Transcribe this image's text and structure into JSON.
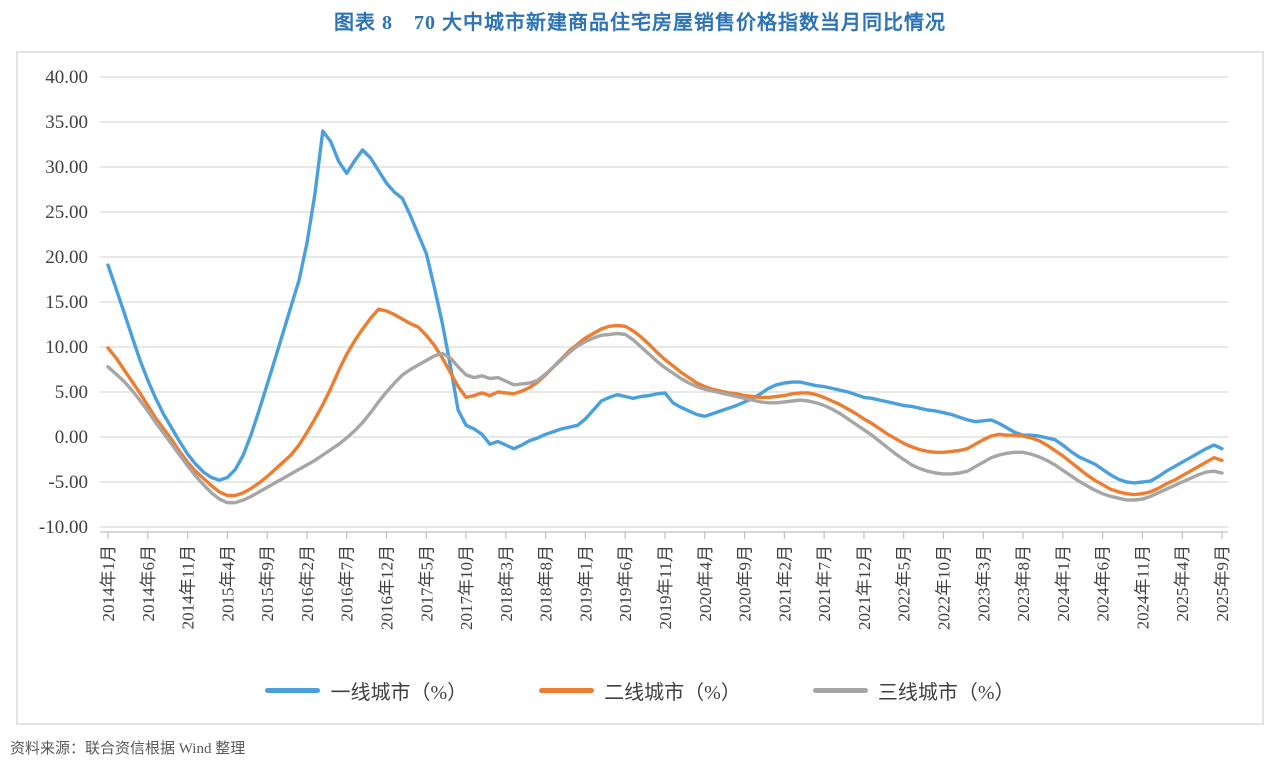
{
  "title": "图表 8　70 大中城市新建商品住宅房屋销售价格指数当月同比情况",
  "source_note": "资料来源：联合资信根据 Wind 整理",
  "chart_data": {
    "type": "line",
    "grid": true,
    "legend_position": "bottom",
    "ylim": [
      -10,
      40
    ],
    "y_ticks": [
      40,
      35,
      30,
      25,
      20,
      15,
      10,
      5,
      0,
      -5,
      -10
    ],
    "y_tick_decimals": 2,
    "x_start_label": "2014年1月",
    "x_tick_every_n_months": 5,
    "x_tick_labels": [
      "2014年1月",
      "2014年6月",
      "2014年11月",
      "2015年4月",
      "2015年9月",
      "2016年2月",
      "2016年7月",
      "2016年12月",
      "2017年5月",
      "2017年10月",
      "2018年3月",
      "2018年8月",
      "2019年1月",
      "2019年6月",
      "2019年11月",
      "2020年4月",
      "2020年9月",
      "2021年2月",
      "2021年7月",
      "2021年12月",
      "2022年5月",
      "2022年10月",
      "2023年3月",
      "2023年8月",
      "2024年1月",
      "2024年6月",
      "2024年11月",
      "2025年4月",
      "2025年9月"
    ],
    "colors": {
      "grid": "#D9D9D9",
      "axis": "#BFBFBF",
      "tick_text": "#404040",
      "title": "#2E74B5"
    },
    "series": [
      {
        "name": "一线城市（%）",
        "color": "#4AA0DC",
        "values": [
          19.1,
          16.5,
          13.9,
          11.2,
          8.6,
          6.3,
          4.3,
          2.5,
          1.0,
          -0.5,
          -1.9,
          -3.0,
          -3.9,
          -4.5,
          -4.8,
          -4.5,
          -3.6,
          -2.0,
          0.3,
          3.0,
          5.8,
          8.7,
          11.6,
          14.5,
          17.4,
          21.5,
          27.0,
          34.0,
          32.8,
          30.6,
          29.3,
          30.7,
          31.9,
          31.0,
          29.6,
          28.2,
          27.2,
          26.5,
          24.6,
          22.5,
          20.4,
          16.7,
          12.7,
          8.0,
          3.0,
          1.3,
          0.9,
          0.3,
          -0.8,
          -0.5,
          -0.9,
          -1.3,
          -0.9,
          -0.4,
          -0.1,
          0.3,
          0.6,
          0.9,
          1.1,
          1.3,
          2.0,
          3.0,
          4.0,
          4.4,
          4.7,
          4.5,
          4.3,
          4.5,
          4.6,
          4.8,
          4.9,
          3.8,
          3.3,
          2.9,
          2.5,
          2.3,
          2.6,
          2.9,
          3.2,
          3.5,
          3.9,
          4.3,
          4.8,
          5.4,
          5.8,
          6.0,
          6.1,
          6.1,
          5.9,
          5.7,
          5.6,
          5.4,
          5.2,
          5.0,
          4.7,
          4.4,
          4.3,
          4.1,
          3.9,
          3.7,
          3.5,
          3.4,
          3.2,
          3.0,
          2.9,
          2.7,
          2.5,
          2.2,
          1.9,
          1.7,
          1.8,
          1.9,
          1.5,
          1.0,
          0.5,
          0.2,
          0.2,
          0.1,
          -0.1,
          -0.3,
          -0.9,
          -1.6,
          -2.2,
          -2.6,
          -3.0,
          -3.6,
          -4.2,
          -4.7,
          -5.0,
          -5.1,
          -5.0,
          -4.9,
          -4.4,
          -3.8,
          -3.3,
          -2.8,
          -2.3,
          -1.8,
          -1.3,
          -0.9,
          -1.3
        ]
      },
      {
        "name": "二线城市（%）",
        "color": "#ED7D31",
        "values": [
          9.9,
          8.8,
          7.5,
          6.2,
          4.9,
          3.5,
          2.1,
          0.9,
          -0.3,
          -1.6,
          -2.8,
          -3.8,
          -4.6,
          -5.4,
          -6.1,
          -6.5,
          -6.5,
          -6.2,
          -5.7,
          -5.1,
          -4.4,
          -3.6,
          -2.8,
          -2.0,
          -0.9,
          0.5,
          2.0,
          3.6,
          5.4,
          7.4,
          9.2,
          10.7,
          12.0,
          13.2,
          14.2,
          14.0,
          13.6,
          13.1,
          12.6,
          12.2,
          11.3,
          10.2,
          8.8,
          7.2,
          5.6,
          4.4,
          4.6,
          4.9,
          4.6,
          5.0,
          4.9,
          4.8,
          5.1,
          5.5,
          6.1,
          6.9,
          7.8,
          8.7,
          9.6,
          10.3,
          11.0,
          11.5,
          12.0,
          12.3,
          12.4,
          12.3,
          11.8,
          11.1,
          10.3,
          9.4,
          8.6,
          7.9,
          7.2,
          6.6,
          6.0,
          5.6,
          5.3,
          5.1,
          4.9,
          4.8,
          4.6,
          4.5,
          4.4,
          4.4,
          4.5,
          4.6,
          4.8,
          4.9,
          4.9,
          4.7,
          4.4,
          4.0,
          3.6,
          3.1,
          2.6,
          2.0,
          1.5,
          0.9,
          0.3,
          -0.2,
          -0.7,
          -1.1,
          -1.4,
          -1.6,
          -1.7,
          -1.7,
          -1.6,
          -1.5,
          -1.3,
          -0.8,
          -0.3,
          0.1,
          0.3,
          0.2,
          0.2,
          0.1,
          -0.1,
          -0.4,
          -0.9,
          -1.5,
          -2.1,
          -2.8,
          -3.5,
          -4.2,
          -4.8,
          -5.3,
          -5.8,
          -6.1,
          -6.3,
          -6.4,
          -6.3,
          -6.1,
          -5.7,
          -5.2,
          -4.8,
          -4.3,
          -3.8,
          -3.3,
          -2.8,
          -2.3,
          -2.6
        ]
      },
      {
        "name": "三线城市（%）",
        "color": "#A6A6A6",
        "values": [
          7.8,
          7.0,
          6.2,
          5.2,
          4.1,
          2.9,
          1.6,
          0.4,
          -0.8,
          -2.0,
          -3.2,
          -4.3,
          -5.3,
          -6.2,
          -6.9,
          -7.3,
          -7.3,
          -7.0,
          -6.6,
          -6.1,
          -5.6,
          -5.1,
          -4.6,
          -4.1,
          -3.6,
          -3.1,
          -2.6,
          -2.0,
          -1.4,
          -0.8,
          -0.1,
          0.7,
          1.6,
          2.7,
          3.9,
          5.0,
          6.0,
          6.9,
          7.5,
          8.0,
          8.5,
          9.0,
          9.3,
          8.8,
          7.8,
          6.9,
          6.6,
          6.8,
          6.5,
          6.6,
          6.2,
          5.8,
          5.9,
          6.0,
          6.3,
          7.0,
          7.8,
          8.6,
          9.4,
          10.1,
          10.6,
          11.0,
          11.3,
          11.4,
          11.5,
          11.4,
          10.8,
          10.0,
          9.2,
          8.4,
          7.7,
          7.1,
          6.5,
          6.0,
          5.6,
          5.3,
          5.1,
          4.9,
          4.7,
          4.5,
          4.3,
          4.1,
          3.9,
          3.8,
          3.8,
          3.9,
          4.0,
          4.1,
          4.0,
          3.8,
          3.5,
          3.1,
          2.6,
          2.0,
          1.4,
          0.8,
          0.2,
          -0.5,
          -1.2,
          -1.9,
          -2.5,
          -3.1,
          -3.5,
          -3.8,
          -4.0,
          -4.1,
          -4.1,
          -4.0,
          -3.8,
          -3.3,
          -2.8,
          -2.3,
          -2.0,
          -1.8,
          -1.7,
          -1.7,
          -1.9,
          -2.2,
          -2.6,
          -3.1,
          -3.7,
          -4.3,
          -4.9,
          -5.4,
          -5.9,
          -6.3,
          -6.6,
          -6.8,
          -7.0,
          -7.0,
          -6.9,
          -6.6,
          -6.2,
          -5.8,
          -5.4,
          -5.0,
          -4.6,
          -4.2,
          -3.9,
          -3.8,
          -4.0
        ]
      }
    ]
  }
}
